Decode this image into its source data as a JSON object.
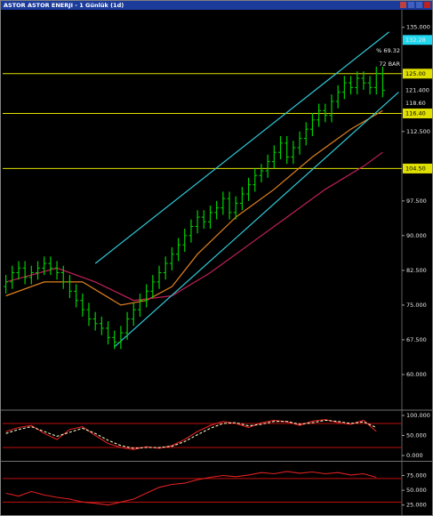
{
  "chart_data": [
    {
      "type": "ohlc",
      "title": "ASTOR ASTOR ENERJI - 1 Günlük (1d)",
      "color": "#00d000",
      "xlim": [
        -0.5,
        62
      ],
      "ylim": [
        52.5,
        138.6
      ],
      "yticks": [
        {
          "value": 135,
          "label": "135.000"
        },
        {
          "value": 112.5,
          "label": "112.500"
        },
        {
          "value": 97.5,
          "label": "97.500"
        },
        {
          "value": 90,
          "label": "90.000"
        },
        {
          "value": 82.5,
          "label": "82.500"
        },
        {
          "value": 75,
          "label": "75.000"
        },
        {
          "value": 67.5,
          "label": "67.500"
        },
        {
          "value": 60,
          "label": "60.000"
        }
      ],
      "open": [
        79,
        80,
        82,
        83,
        81,
        82,
        83,
        84,
        83,
        82,
        80,
        78,
        76,
        74,
        72,
        71,
        70,
        68,
        67,
        69,
        72,
        74,
        76,
        78,
        80,
        82,
        84,
        86,
        88,
        90,
        92,
        94,
        93,
        95,
        96,
        98,
        95,
        97,
        99,
        101,
        103,
        104,
        106,
        108,
        110,
        107,
        109,
        111,
        113,
        115,
        117,
        116,
        119,
        121,
        123,
        122,
        124,
        123,
        122,
        125
      ],
      "high": [
        81.5,
        83.5,
        84.5,
        84.5,
        83.5,
        84.5,
        85.5,
        85.5,
        84.5,
        83.5,
        81.5,
        79.5,
        77.5,
        75.5,
        73.5,
        72.5,
        71.5,
        69.5,
        70.5,
        73.5,
        75.5,
        77.5,
        79.5,
        81.5,
        83.5,
        85.5,
        87.5,
        89.5,
        91.5,
        93.5,
        95.5,
        95.5,
        96.5,
        97.5,
        99.5,
        99.5,
        98.5,
        100.5,
        102.5,
        104.5,
        105.5,
        107.5,
        109.5,
        111.5,
        111.5,
        110.5,
        112.5,
        114.5,
        116.5,
        118.5,
        118.5,
        120.5,
        122.5,
        124.5,
        124.5,
        125.5,
        125.5,
        124.5,
        126.5,
        126.5
      ],
      "low": [
        77.5,
        78.5,
        80.5,
        79.5,
        79.5,
        80.5,
        81.5,
        81.5,
        80.5,
        78.5,
        76.5,
        74.5,
        72.5,
        70.5,
        69.5,
        68.5,
        66.5,
        65.5,
        65.5,
        67.5,
        70.5,
        72.5,
        74.5,
        76.5,
        78.5,
        80.5,
        82.5,
        84.5,
        86.5,
        88.5,
        90.5,
        91.5,
        91.5,
        93.5,
        94.5,
        93.5,
        93.5,
        95.5,
        97.5,
        99.5,
        101.5,
        102.5,
        104.5,
        106.5,
        105.5,
        105.5,
        107.5,
        109.5,
        111.5,
        113.5,
        114.5,
        114.5,
        117.5,
        119.5,
        120.5,
        120.5,
        121.5,
        120.5,
        120.5,
        119.9
      ],
      "close": [
        80,
        82,
        83,
        81,
        82,
        83,
        84,
        83,
        82,
        80,
        78,
        76,
        74,
        72,
        71,
        70,
        68,
        67,
        69,
        72,
        74,
        76,
        78,
        80,
        82,
        84,
        86,
        88,
        90,
        92,
        94,
        93,
        95,
        96,
        98,
        95,
        97,
        99,
        101,
        103,
        104,
        106,
        108,
        110,
        107,
        109,
        111,
        113,
        115,
        117,
        116,
        119,
        121,
        123,
        122,
        124,
        123,
        122,
        125,
        121.4
      ],
      "overlays": [
        {
          "color": "#e08020",
          "x": [
            0,
            6,
            12,
            18,
            22,
            26,
            30,
            36,
            42,
            48,
            54,
            59
          ],
          "values": [
            77,
            80,
            80,
            75,
            76,
            79,
            86,
            94,
            100,
            107,
            113,
            117
          ]
        },
        {
          "color": "#c0205a",
          "x": [
            0,
            8,
            14,
            20,
            26,
            32,
            38,
            44,
            50,
            56,
            59
          ],
          "values": [
            80,
            83,
            80,
            76,
            77,
            82,
            88,
            94,
            100,
            105,
            108
          ]
        },
        {
          "color": "#30c8d8",
          "x": [
            14,
            60
          ],
          "values": [
            84,
            134
          ]
        },
        {
          "color": "#30c8d8",
          "x": [
            17,
            61.5
          ],
          "values": [
            66,
            121
          ]
        }
      ],
      "levels": [
        {
          "value": 125,
          "label": "125.00"
        },
        {
          "value": 116.4,
          "label": "116.40"
        },
        {
          "value": 104.5,
          "label": "104.50"
        }
      ],
      "level_color": "#e0e000",
      "price_labels": [
        {
          "value": 132.28,
          "label": "132.28",
          "color": "#20d8f0"
        },
        {
          "value": 121.4,
          "label": "121.400",
          "color": "#000000"
        },
        {
          "value": 118.6,
          "label": "118.60",
          "color": "#000000"
        }
      ],
      "annotations": [
        "% 69.32",
        "72 BAR"
      ]
    },
    {
      "type": "line",
      "xlim": [
        -0.5,
        62
      ],
      "ylim": [
        -11.1,
        111.1
      ],
      "yticks": [
        {
          "value": 100,
          "label": "100.000"
        },
        {
          "value": 50,
          "label": "50.000"
        },
        {
          "value": 0,
          "label": "0.000"
        }
      ],
      "levels": [
        80,
        20
      ],
      "level_color": "#c01010",
      "x": [
        0,
        2,
        4,
        6,
        8,
        10,
        12,
        14,
        16,
        18,
        20,
        22,
        24,
        26,
        28,
        30,
        32,
        34,
        36,
        38,
        40,
        42,
        44,
        46,
        48,
        50,
        52,
        54,
        56,
        58
      ],
      "series": [
        {
          "color": "#e02020",
          "dash": false,
          "values": [
            60,
            70,
            75,
            55,
            40,
            65,
            72,
            50,
            30,
            20,
            15,
            22,
            18,
            25,
            40,
            60,
            75,
            85,
            80,
            70,
            82,
            88,
            84,
            75,
            86,
            90,
            82,
            78,
            88,
            60
          ]
        },
        {
          "color": "#f0f0c0",
          "dash": true,
          "values": [
            55,
            65,
            72,
            60,
            48,
            58,
            68,
            55,
            38,
            25,
            18,
            20,
            20,
            23,
            35,
            52,
            68,
            80,
            82,
            74,
            78,
            85,
            85,
            78,
            82,
            88,
            85,
            80,
            84,
            70
          ]
        }
      ]
    },
    {
      "type": "line",
      "xlim": [
        -0.5,
        62
      ],
      "ylim": [
        9.4,
        96.9
      ],
      "yticks": [
        {
          "value": 75,
          "label": "75.000"
        },
        {
          "value": 50,
          "label": "50.000"
        },
        {
          "value": 25,
          "label": "25.000"
        }
      ],
      "levels": [
        70,
        30
      ],
      "level_color": "#c01010",
      "x": [
        0,
        2,
        4,
        6,
        8,
        10,
        12,
        14,
        16,
        18,
        20,
        22,
        24,
        26,
        28,
        30,
        32,
        34,
        36,
        38,
        40,
        42,
        44,
        46,
        48,
        50,
        52,
        54,
        56,
        58
      ],
      "series": [
        {
          "color": "#e02020",
          "dash": false,
          "values": [
            45,
            40,
            48,
            42,
            38,
            35,
            30,
            28,
            25,
            30,
            35,
            45,
            55,
            60,
            62,
            68,
            72,
            75,
            73,
            76,
            80,
            78,
            82,
            79,
            81,
            78,
            80,
            76,
            78,
            72
          ]
        }
      ]
    }
  ]
}
